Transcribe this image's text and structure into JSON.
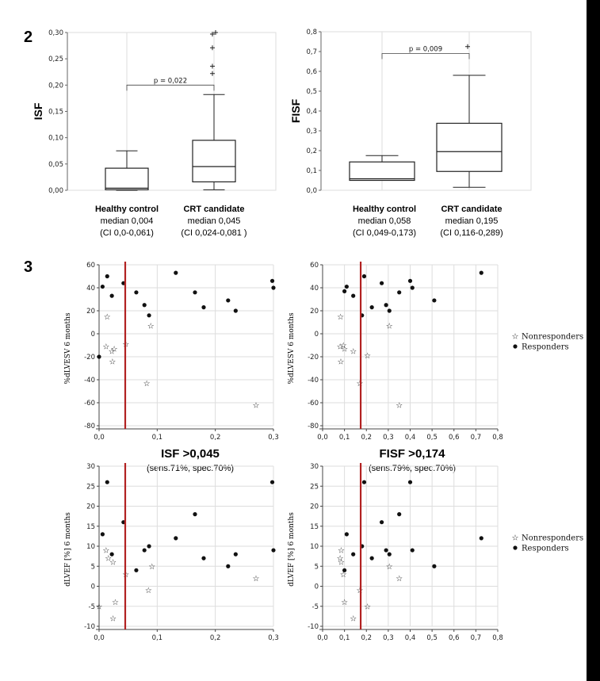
{
  "figure_labels": {
    "panel_2": "2",
    "panel_3": "3"
  },
  "boxplot_captions": [
    {
      "title": "Healthy control",
      "median": "median 0,004",
      "ci": "(CI 0,0-0,061)"
    },
    {
      "title": "CRT candidate",
      "median": "median 0,045",
      "ci": "(CI 0,024-0,081 )"
    },
    {
      "title": "Healthy control",
      "median": "median 0,058",
      "ci": "(CI 0,049-0,173)"
    },
    {
      "title": "CRT candidate",
      "median": "median 0,195",
      "ci": "(CI 0,116-0,289)"
    }
  ],
  "thresholds": [
    {
      "label": "ISF >0,045",
      "sub": "(sens.71%, spec.70%)"
    },
    {
      "label": "FISF >0,174",
      "sub": "(sens.79%, spec.70%)"
    }
  ],
  "colors": {
    "threshold_line": "#b22222",
    "ink": "#222222",
    "grid": "#dddddd"
  },
  "chart_data": [
    {
      "id": "box_isf",
      "type": "box",
      "ylabel": "ISF",
      "ylim": [
        0,
        0.3
      ],
      "yticks": [
        0,
        0.05,
        0.1,
        0.15,
        0.2,
        0.25,
        0.3
      ],
      "ytick_labels": [
        "0,00",
        "0,05",
        "0,10",
        "0,15",
        "0,20",
        "0,25",
        "0,30"
      ],
      "pvalue": "p = 0,022",
      "groups": [
        {
          "whisker_low": 0,
          "q1": 0.001,
          "median": 0.004,
          "q3": 0.042,
          "whisker_high": 0.075,
          "outliers": []
        },
        {
          "whisker_low": 0.001,
          "q1": 0.016,
          "median": 0.045,
          "q3": 0.095,
          "whisker_high": 0.182,
          "outliers": [
            0.222,
            0.236,
            0.271,
            0.297,
            0.3
          ]
        }
      ]
    },
    {
      "id": "box_fisf",
      "type": "box",
      "ylabel": "FISF",
      "ylim": [
        0,
        0.8
      ],
      "yticks": [
        0,
        0.1,
        0.2,
        0.3,
        0.4,
        0.5,
        0.6,
        0.7,
        0.8
      ],
      "ytick_labels": [
        "0,0",
        "0,1",
        "0,2",
        "0,3",
        "0,4",
        "0,5",
        "0,6",
        "0,7",
        "0,8"
      ],
      "pvalue": "p = 0,009",
      "groups": [
        {
          "whisker_low": 0.05,
          "q1": 0.05,
          "median": 0.058,
          "q3": 0.143,
          "whisker_high": 0.175,
          "outliers": []
        },
        {
          "whisker_low": 0.015,
          "q1": 0.095,
          "median": 0.195,
          "q3": 0.338,
          "whisker_high": 0.58,
          "outliers": [
            0.725
          ]
        }
      ]
    },
    {
      "id": "sc_isf_lvesv",
      "type": "scatter",
      "ylabel": "%dLVESV 6 months",
      "xlim": [
        0,
        0.3
      ],
      "ylim": [
        -80,
        60
      ],
      "xticks": [
        0,
        0.1,
        0.2,
        0.3
      ],
      "xtick_labels": [
        "0,0",
        "0,1",
        "0,2",
        "0,3"
      ],
      "yticks": [
        -80,
        -60,
        -40,
        -20,
        0,
        20,
        40,
        60
      ],
      "ytick_labels": [
        "-80",
        "-60",
        "-40",
        "-20",
        "0",
        "20",
        "40",
        "60"
      ],
      "threshold_x": 0.045,
      "series": [
        {
          "name": "Nonresponders",
          "marker": "star",
          "points": [
            [
              0.014,
              15
            ],
            [
              0.012,
              -11
            ],
            [
              0.022,
              -15
            ],
            [
              0.026,
              -13
            ],
            [
              0.023,
              -24
            ],
            [
              0.046,
              -9
            ],
            [
              0.082,
              -43
            ],
            [
              0.089,
              7
            ],
            [
              0.27,
              -62
            ]
          ]
        },
        {
          "name": "Responders",
          "marker": "dot",
          "points": [
            [
              0.0,
              -20
            ],
            [
              0.006,
              41
            ],
            [
              0.014,
              50
            ],
            [
              0.022,
              33
            ],
            [
              0.042,
              44
            ],
            [
              0.064,
              36
            ],
            [
              0.078,
              25
            ],
            [
              0.086,
              16
            ],
            [
              0.132,
              53
            ],
            [
              0.165,
              36
            ],
            [
              0.18,
              23
            ],
            [
              0.222,
              29
            ],
            [
              0.235,
              20
            ],
            [
              0.298,
              46
            ],
            [
              0.3,
              40
            ]
          ]
        }
      ]
    },
    {
      "id": "sc_fisf_lvesv",
      "type": "scatter",
      "ylabel": "%dLVESV 6 months",
      "xlim": [
        0,
        0.8
      ],
      "ylim": [
        -80,
        60
      ],
      "xticks": [
        0,
        0.1,
        0.2,
        0.3,
        0.4,
        0.5,
        0.6,
        0.7,
        0.8
      ],
      "xtick_labels": [
        "0,0",
        "0,1",
        "0,2",
        "0,3",
        "0,4",
        "0,5",
        "0,6",
        "0,7",
        "0,8"
      ],
      "yticks": [
        -80,
        -60,
        -40,
        -20,
        0,
        20,
        40,
        60
      ],
      "ytick_labels": [
        "-80",
        "-60",
        "-40",
        "-20",
        "0",
        "20",
        "40",
        "60"
      ],
      "threshold_x": 0.174,
      "series": [
        {
          "name": "Nonresponders",
          "marker": "star",
          "points": [
            [
              0.082,
              15
            ],
            [
              0.08,
              -11
            ],
            [
              0.095,
              -10
            ],
            [
              0.1,
              -13
            ],
            [
              0.083,
              -24
            ],
            [
              0.14,
              -15
            ],
            [
              0.17,
              -43
            ],
            [
              0.205,
              -19
            ],
            [
              0.305,
              7
            ],
            [
              0.35,
              -62
            ]
          ]
        },
        {
          "name": "Responders",
          "marker": "dot",
          "points": [
            [
              0.1,
              37
            ],
            [
              0.11,
              41
            ],
            [
              0.14,
              33
            ],
            [
              0.18,
              16
            ],
            [
              0.19,
              50
            ],
            [
              0.225,
              23
            ],
            [
              0.27,
              44
            ],
            [
              0.29,
              25
            ],
            [
              0.305,
              20
            ],
            [
              0.35,
              36
            ],
            [
              0.4,
              46
            ],
            [
              0.41,
              40
            ],
            [
              0.51,
              29
            ],
            [
              0.725,
              53
            ]
          ]
        }
      ]
    },
    {
      "id": "sc_isf_lvef",
      "type": "scatter",
      "ylabel": "dLVEF [%] 6 months",
      "xlim": [
        0,
        0.3
      ],
      "ylim": [
        -10,
        30
      ],
      "xticks": [
        0,
        0.1,
        0.2,
        0.3
      ],
      "xtick_labels": [
        "0,0",
        "0,1",
        "0,2",
        "0,3"
      ],
      "yticks": [
        -10,
        -5,
        0,
        5,
        10,
        15,
        20,
        25,
        30
      ],
      "ytick_labels": [
        "-10",
        "-5",
        "0",
        "5",
        "10",
        "15",
        "20",
        "25",
        "30"
      ],
      "threshold_x": 0.045,
      "series": [
        {
          "name": "Nonresponders",
          "marker": "star",
          "points": [
            [
              0.0,
              -5
            ],
            [
              0.012,
              9
            ],
            [
              0.016,
              7
            ],
            [
              0.024,
              6
            ],
            [
              0.028,
              -4
            ],
            [
              0.024,
              -8
            ],
            [
              0.046,
              3
            ],
            [
              0.085,
              -1
            ],
            [
              0.091,
              5
            ],
            [
              0.27,
              2
            ]
          ]
        },
        {
          "name": "Responders",
          "marker": "dot",
          "points": [
            [
              0.006,
              13
            ],
            [
              0.014,
              26
            ],
            [
              0.022,
              8
            ],
            [
              0.042,
              16
            ],
            [
              0.064,
              4
            ],
            [
              0.078,
              9
            ],
            [
              0.086,
              10
            ],
            [
              0.132,
              12
            ],
            [
              0.165,
              18
            ],
            [
              0.18,
              7
            ],
            [
              0.222,
              5
            ],
            [
              0.235,
              8
            ],
            [
              0.298,
              26
            ],
            [
              0.3,
              9
            ]
          ]
        }
      ]
    },
    {
      "id": "sc_fisf_lvef",
      "type": "scatter",
      "ylabel": "dLVEF [%] 6 months",
      "xlim": [
        0,
        0.8
      ],
      "ylim": [
        -10,
        30
      ],
      "xticks": [
        0,
        0.1,
        0.2,
        0.3,
        0.4,
        0.5,
        0.6,
        0.7,
        0.8
      ],
      "xtick_labels": [
        "0,0",
        "0,1",
        "0,2",
        "0,3",
        "0,4",
        "0,5",
        "0,6",
        "0,7",
        "0,8"
      ],
      "yticks": [
        -10,
        -5,
        0,
        5,
        10,
        15,
        20,
        25,
        30
      ],
      "ytick_labels": [
        "-10",
        "-5",
        "0",
        "5",
        "10",
        "15",
        "20",
        "25",
        "30"
      ],
      "threshold_x": 0.174,
      "series": [
        {
          "name": "Nonresponders",
          "marker": "star",
          "points": [
            [
              0.085,
              9
            ],
            [
              0.08,
              7
            ],
            [
              0.085,
              6
            ],
            [
              0.095,
              3
            ],
            [
              0.1,
              -4
            ],
            [
              0.14,
              -8
            ],
            [
              0.17,
              -1
            ],
            [
              0.205,
              -5
            ],
            [
              0.305,
              5
            ],
            [
              0.35,
              2
            ]
          ]
        },
        {
          "name": "Responders",
          "marker": "dot",
          "points": [
            [
              0.1,
              4
            ],
            [
              0.11,
              13
            ],
            [
              0.14,
              8
            ],
            [
              0.18,
              10
            ],
            [
              0.19,
              26
            ],
            [
              0.225,
              7
            ],
            [
              0.27,
              16
            ],
            [
              0.29,
              9
            ],
            [
              0.305,
              8
            ],
            [
              0.35,
              18
            ],
            [
              0.4,
              26
            ],
            [
              0.41,
              9
            ],
            [
              0.51,
              5
            ],
            [
              0.725,
              12
            ]
          ]
        }
      ]
    }
  ]
}
